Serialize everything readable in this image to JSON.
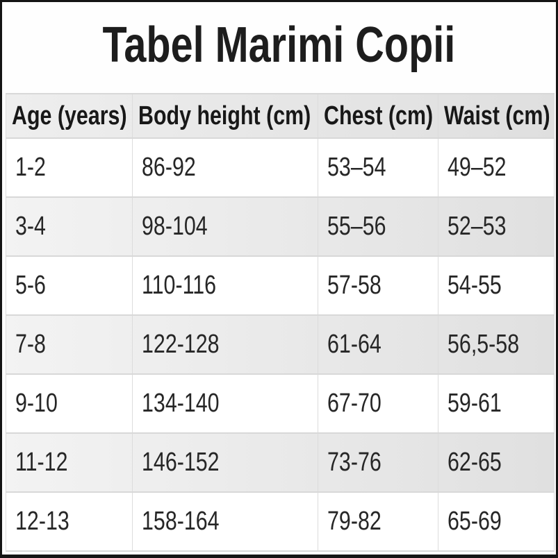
{
  "page": {
    "title": "Tabel Marimi Copii"
  },
  "chart_data": {
    "type": "table",
    "title": "Tabel Marimi Copii",
    "columns": [
      "Age (years)",
      "Body height (cm)",
      "Chest (cm)",
      "Waist (cm)"
    ],
    "rows": [
      [
        "1-2",
        "86-92",
        "53–54",
        "49–52"
      ],
      [
        "3-4",
        "98-104",
        "55–56",
        "52–53"
      ],
      [
        "5-6",
        "110-116",
        "57-58",
        "54-55"
      ],
      [
        "7-8",
        "122-128",
        "61-64",
        "56,5-58"
      ],
      [
        "9-10",
        "134-140",
        "67-70",
        "59-61"
      ],
      [
        "11-12",
        "146-152",
        "73-76",
        "62-65"
      ],
      [
        "12-13",
        "158-164",
        "79-82",
        "65-69"
      ]
    ],
    "layout": {
      "striped_row_indices": [
        1,
        3,
        5
      ],
      "grid": true,
      "header_style": "bold"
    }
  },
  "colors": {
    "frame_border": "#141414",
    "header_row_bg_left": "#eeeeee",
    "header_row_bg_right": "#dfdfdf",
    "striped_row_bg_left": "#f3f3f3",
    "striped_row_bg_right": "#e0e0e0",
    "grid_line": "#d8d8d8",
    "title_text": "#1d1d1d",
    "cell_text": "#262626"
  }
}
